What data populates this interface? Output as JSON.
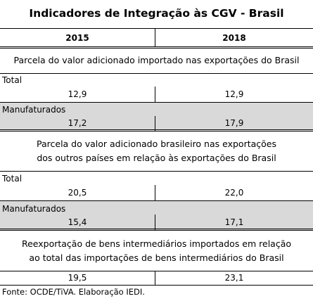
{
  "title": "Indicadores de Integração às CGV - Brasil",
  "columns": [
    "2015",
    "2018"
  ],
  "sections": [
    {
      "title_lines": [
        "Parcela do valor adicionado importado nas exportações do Brasil"
      ],
      "rows": [
        {
          "label": "Total",
          "values": [
            "12,9",
            "12,9"
          ]
        },
        {
          "label": "Manufaturados",
          "values": [
            "17,2",
            "17,9"
          ]
        }
      ]
    },
    {
      "title_lines": [
        "Parcela do valor adicionado brasileiro nas exportações",
        "dos outros países em relação às exportações do Brasil"
      ],
      "rows": [
        {
          "label": "Total",
          "values": [
            "20,5",
            "22,0"
          ]
        },
        {
          "label": "Manufaturados",
          "values": [
            "15,4",
            "17,1"
          ]
        }
      ]
    },
    {
      "title_lines": [
        "Reexportação de bens intermediários importados em relação",
        "ao total das importações de bens intermediários do Brasil"
      ],
      "rows": [
        {
          "label": "",
          "values": [
            "19,5",
            "23,1"
          ]
        }
      ]
    }
  ],
  "source": "Fonte: OCDE/TiVA. Elaboração IEDI."
}
